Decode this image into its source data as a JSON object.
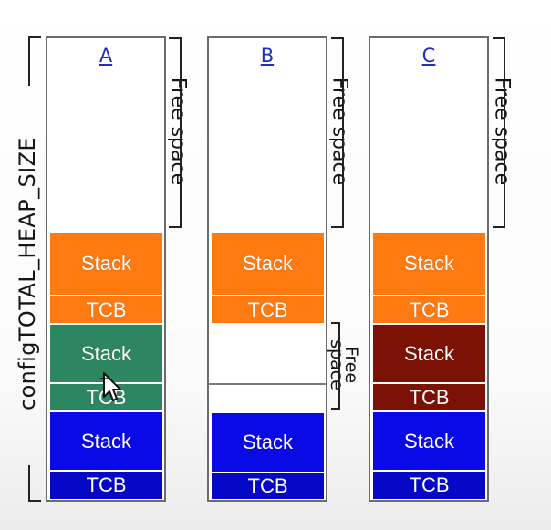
{
  "heap_label": "configTOTAL_HEAP_SIZE",
  "columns": [
    {
      "label": "A",
      "free_label": "Free space",
      "blocks": [
        {
          "label": "Stack",
          "color": "#ff7a10"
        },
        {
          "label": "TCB",
          "color": "#ff7a10"
        },
        {
          "label": "Stack",
          "color": "#2e8660"
        },
        {
          "label": "TCB",
          "color": "#2e8660"
        },
        {
          "label": "Stack",
          "color": "#0a0ae6"
        },
        {
          "label": "TCB",
          "color": "#0707c8"
        }
      ]
    },
    {
      "label": "B",
      "free_label": "Free space",
      "free_label_2_line1": "Free",
      "free_label_2_line2": "space",
      "blocks": [
        {
          "label": "Stack",
          "color": "#ff7a10"
        },
        {
          "label": "TCB",
          "color": "#ff7a10"
        },
        {
          "label": "Stack",
          "color": "#0a0ae6"
        },
        {
          "label": "TCB",
          "color": "#0707c8"
        }
      ]
    },
    {
      "label": "C",
      "free_label": "Free space",
      "blocks": [
        {
          "label": "Stack",
          "color": "#ff7a10"
        },
        {
          "label": "TCB",
          "color": "#ff7a10"
        },
        {
          "label": "Stack",
          "color": "#7b1205"
        },
        {
          "label": "TCB",
          "color": "#7b1205"
        },
        {
          "label": "Stack",
          "color": "#0a0ae6"
        },
        {
          "label": "TCB",
          "color": "#0707c8"
        }
      ]
    }
  ]
}
